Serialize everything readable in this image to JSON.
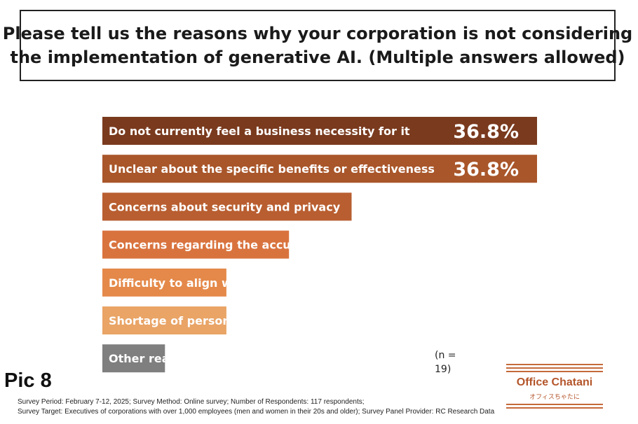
{
  "title": {
    "line1": "Please tell us the reasons why your corporation is not considering",
    "line2": "the implementation of generative AI. (Multiple answers allowed)"
  },
  "chart_data": {
    "type": "bar",
    "orientation": "horizontal",
    "unit": "%",
    "categories": [
      "Do not currently feel a business necessity for it",
      "Unclear about the specific benefits or effectiveness",
      "Concerns about security and privacy",
      "Concerns regarding the accuracy",
      "Difficulty to align with",
      "Shortage of personnel",
      "Other reasons"
    ],
    "visible_labels": [
      "Do not currently feel a business necessity for it",
      "Unclear about the specific benefits or effectiveness",
      "Concerns about security and privacy",
      "Concerns regarding the accuracy",
      "Difficulty to align wit",
      "Shortage of personne",
      "Other rea"
    ],
    "values": [
      36.8,
      36.8,
      21.1,
      15.8,
      10.5,
      10.5,
      5.3
    ],
    "value_labels": [
      "36.8%",
      "36.8%",
      "",
      "",
      "",
      "",
      ""
    ],
    "bar_colors": [
      "#7a3a1e",
      "#a9562a",
      "#b95e30",
      "#d9733e",
      "#e4894a",
      "#e9a466",
      "#7f7f7f"
    ],
    "xlim": [
      0,
      36.8
    ],
    "grid": false,
    "legend": "none"
  },
  "n_note": {
    "line1": "(n =",
    "line2": "19)"
  },
  "pic_label": "Pic 8",
  "footer": {
    "line1": "Survey Period: February 7-12, 2025; Survey Method: Online survey;  Number of Respondents: 117 respondents;",
    "line2": "Survey Target: Executives of corporations with over 1,000 employees (men and women in their 20s and older); Survey Panel Provider: RC Research Data"
  },
  "logo": {
    "name": "Office Chatani",
    "sub": "オフィスちゃたに",
    "color": "#b4552a"
  }
}
